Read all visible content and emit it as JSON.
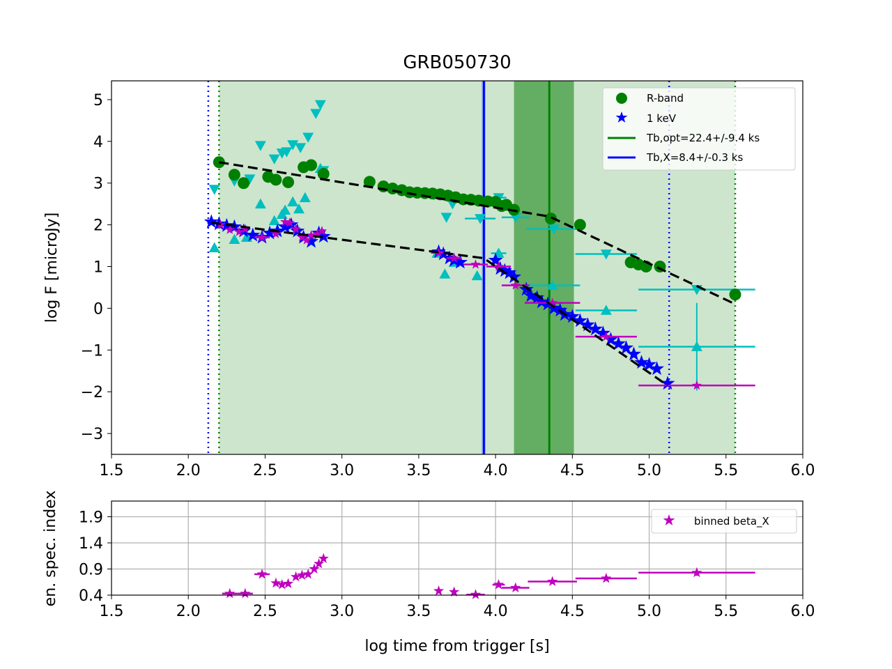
{
  "chart_data": [
    {
      "type": "scatter",
      "title": "GRB050730",
      "xlabel": "",
      "ylabel": "log F [microJy]",
      "xlim": [
        1.5,
        6.0
      ],
      "ylim": [
        -3.5,
        5.45
      ],
      "x_ticks": [
        "1.5",
        "2.0",
        "2.5",
        "3.0",
        "3.5",
        "4.0",
        "4.5",
        "5.0",
        "5.5",
        "6.0"
      ],
      "y_ticks": [
        "−3",
        "−2",
        "−1",
        "0",
        "1",
        "2",
        "3",
        "4",
        "5"
      ],
      "grid": false,
      "legend_position": "top-right",
      "legend": [
        "R-band",
        "1 keV",
        "Tb,opt=22.4+/-9.4 ks",
        "Tb,X=8.4+/-0.3 ks"
      ],
      "colors": {
        "r_band": "#008000",
        "x_ray": "#0000ff",
        "binned": "#bf00bf",
        "uv": "#00bfbf",
        "fit": "#000000",
        "shade": "#cde5cd",
        "shade_dark": "#63ae63"
      },
      "windows": {
        "optical": [
          2.2,
          5.56
        ],
        "xray": [
          2.13,
          5.13
        ]
      },
      "breaks": {
        "optical": {
          "log_t": 4.35,
          "band": [
            4.12,
            4.51
          ]
        },
        "xray": {
          "log_t": 3.924,
          "band": [
            3.91,
            3.935
          ]
        }
      },
      "series": [
        {
          "name": "R-band",
          "marker": "circle",
          "x": [
            2.2,
            2.3,
            2.36,
            2.52,
            2.57,
            2.65,
            2.75,
            2.8,
            2.88,
            3.18,
            3.27,
            3.33,
            3.39,
            3.44,
            3.49,
            3.54,
            3.59,
            3.64,
            3.69,
            3.74,
            3.79,
            3.84,
            3.89,
            3.95,
            4.0,
            4.04,
            4.07,
            4.12,
            4.36,
            4.55,
            4.88,
            4.93,
            4.98,
            5.07,
            5.56
          ],
          "y": [
            3.5,
            3.2,
            3.0,
            3.15,
            3.08,
            3.02,
            3.38,
            3.43,
            3.22,
            3.03,
            2.92,
            2.87,
            2.83,
            2.78,
            2.77,
            2.76,
            2.75,
            2.73,
            2.7,
            2.66,
            2.61,
            2.6,
            2.58,
            2.56,
            2.55,
            2.45,
            2.48,
            2.36,
            2.15,
            2.0,
            1.1,
            1.05,
            1.0,
            1.0,
            0.33
          ]
        },
        {
          "name": "1 keV",
          "marker": "star",
          "x": [
            2.15,
            2.2,
            2.25,
            2.3,
            2.36,
            2.42,
            2.48,
            2.53,
            2.58,
            2.63,
            2.67,
            2.71,
            2.75,
            2.8,
            2.85,
            2.88,
            3.63,
            3.66,
            3.7,
            3.73,
            3.77,
            4.0,
            4.03,
            4.06,
            4.09,
            4.12,
            4.2,
            4.23,
            4.27,
            4.3,
            4.34,
            4.38,
            4.42,
            4.45,
            4.5,
            4.55,
            4.6,
            4.65,
            4.7,
            4.75,
            4.8,
            4.85,
            4.9,
            4.95,
            5.0,
            5.05,
            5.12
          ],
          "y": [
            2.07,
            2.02,
            1.98,
            1.95,
            1.85,
            1.75,
            1.7,
            1.8,
            1.85,
            1.95,
            2.0,
            1.85,
            1.7,
            1.6,
            1.8,
            1.72,
            1.35,
            1.3,
            1.2,
            1.15,
            1.1,
            1.15,
            0.95,
            0.9,
            0.85,
            0.75,
            0.45,
            0.3,
            0.25,
            0.15,
            0.1,
            0.0,
            -0.05,
            -0.15,
            -0.2,
            -0.3,
            -0.4,
            -0.5,
            -0.6,
            -0.75,
            -0.85,
            -0.95,
            -1.1,
            -1.3,
            -1.35,
            -1.45,
            -1.8
          ]
        },
        {
          "name": "binned beta_X flux",
          "marker": "star",
          "x": [
            2.21,
            2.27,
            2.33,
            2.37,
            2.48,
            2.57,
            2.63,
            2.66,
            2.7,
            2.74,
            2.77,
            2.8,
            2.84,
            2.87,
            3.63,
            3.73,
            3.87,
            4.02,
            4.13,
            4.37,
            4.72,
            5.31
          ],
          "y": [
            2.0,
            1.88,
            1.83,
            1.9,
            1.7,
            1.78,
            2.07,
            2.05,
            1.9,
            1.7,
            1.63,
            1.75,
            1.78,
            1.85,
            1.33,
            1.2,
            1.05,
            1.0,
            0.55,
            0.13,
            -0.68,
            -1.85
          ],
          "xerr": [
            0,
            0,
            0,
            0,
            0.05,
            0,
            0,
            0,
            0,
            0,
            0,
            0,
            0,
            0,
            0.05,
            0.05,
            0.08,
            0.08,
            0.09,
            0.18,
            0.2,
            0.38
          ],
          "yerr": [
            0,
            0,
            0,
            0,
            0,
            0,
            0,
            0,
            0,
            0,
            0,
            0,
            0,
            0,
            0,
            0,
            0,
            0,
            0,
            0,
            0,
            0
          ]
        },
        {
          "name": "UV down",
          "marker": "triangle-down",
          "x": [
            2.17,
            2.3,
            2.4,
            2.47,
            2.56,
            2.61,
            2.64,
            2.68,
            2.73,
            2.78,
            2.83,
            2.86,
            2.88,
            3.6,
            3.68,
            3.72,
            3.9,
            4.02,
            4.13,
            4.38,
            4.72,
            5.31
          ],
          "y": [
            2.85,
            3.05,
            3.1,
            3.9,
            3.58,
            3.72,
            3.75,
            3.92,
            3.85,
            4.1,
            4.67,
            4.88,
            3.3,
            2.72,
            2.18,
            2.5,
            2.15,
            2.65,
            2.18,
            1.9,
            1.3,
            0.45
          ],
          "xerr": [
            0,
            0,
            0,
            0,
            0,
            0,
            0,
            0,
            0,
            0,
            0,
            0,
            0,
            0,
            0,
            0,
            0.1,
            0.05,
            0.09,
            0.18,
            0.2,
            0.38
          ],
          "yerr": [
            0,
            0,
            0,
            0,
            0,
            0,
            0,
            0,
            0,
            0,
            0,
            0,
            0,
            0,
            0,
            0,
            0,
            0,
            0,
            0,
            0,
            0
          ]
        },
        {
          "name": "UV up",
          "marker": "triangle-up",
          "x": [
            2.17,
            2.3,
            2.38,
            2.47,
            2.56,
            2.61,
            2.63,
            2.68,
            2.72,
            2.76,
            2.86,
            3.62,
            3.67,
            3.73,
            3.88,
            4.02,
            4.37,
            4.72,
            5.31
          ],
          "y": [
            1.45,
            1.65,
            1.7,
            2.5,
            2.1,
            2.25,
            2.35,
            2.55,
            2.38,
            2.65,
            3.35,
            1.32,
            0.82,
            1.1,
            0.78,
            1.32,
            0.55,
            -0.05,
            -0.92
          ],
          "xerr": [
            0,
            0,
            0,
            0,
            0,
            0,
            0,
            0,
            0,
            0,
            0,
            0,
            0,
            0,
            0,
            0.05,
            0.18,
            0.2,
            0.38
          ],
          "yerr": [
            0,
            0,
            0,
            0,
            0,
            0,
            0,
            0,
            0,
            0,
            0,
            0,
            0,
            0,
            0,
            0,
            0,
            0,
            2.1
          ]
        },
        {
          "name": "optical fit",
          "marker": "dashed-line",
          "x": [
            2.2,
            4.35,
            5.56
          ],
          "y": [
            3.5,
            2.2,
            0.1
          ]
        },
        {
          "name": "x-ray fit",
          "marker": "dashed-line",
          "x": [
            2.15,
            3.924,
            5.12
          ],
          "y": [
            2.05,
            1.2,
            -1.85
          ]
        }
      ]
    },
    {
      "type": "scatter",
      "title": "",
      "xlabel": "log time from trigger [s]",
      "ylabel": "en. spec. index",
      "xlim": [
        1.5,
        6.0
      ],
      "ylim": [
        0.4,
        2.2
      ],
      "x_ticks": [
        "1.5",
        "2.0",
        "2.5",
        "3.0",
        "3.5",
        "4.0",
        "4.5",
        "5.0",
        "5.5",
        "6.0"
      ],
      "y_ticks": [
        "0.4",
        "0.9",
        "1.4",
        "1.9"
      ],
      "grid": true,
      "legend_position": "top-right",
      "legend": [
        "binned beta_X"
      ],
      "series": [
        {
          "name": "binned beta_X",
          "marker": "star",
          "x": [
            2.27,
            2.37,
            2.48,
            2.57,
            2.61,
            2.65,
            2.7,
            2.74,
            2.78,
            2.82,
            2.85,
            2.88,
            3.63,
            3.73,
            3.87,
            4.02,
            4.13,
            4.37,
            4.72,
            5.31
          ],
          "y": [
            0.43,
            0.43,
            0.8,
            0.63,
            0.6,
            0.62,
            0.75,
            0.78,
            0.8,
            0.9,
            1.0,
            1.1,
            0.48,
            0.46,
            0.41,
            0.6,
            0.54,
            0.66,
            0.72,
            0.83
          ],
          "xerr": [
            0.05,
            0.05,
            0.05,
            0,
            0,
            0,
            0,
            0,
            0,
            0,
            0,
            0,
            0,
            0,
            0.06,
            0.04,
            0.09,
            0.16,
            0.2,
            0.38
          ],
          "yerr": [
            0,
            0,
            0,
            0,
            0,
            0,
            0,
            0,
            0,
            0,
            0,
            0,
            0,
            0,
            0,
            0,
            0,
            0,
            0,
            0.12
          ]
        }
      ]
    }
  ]
}
